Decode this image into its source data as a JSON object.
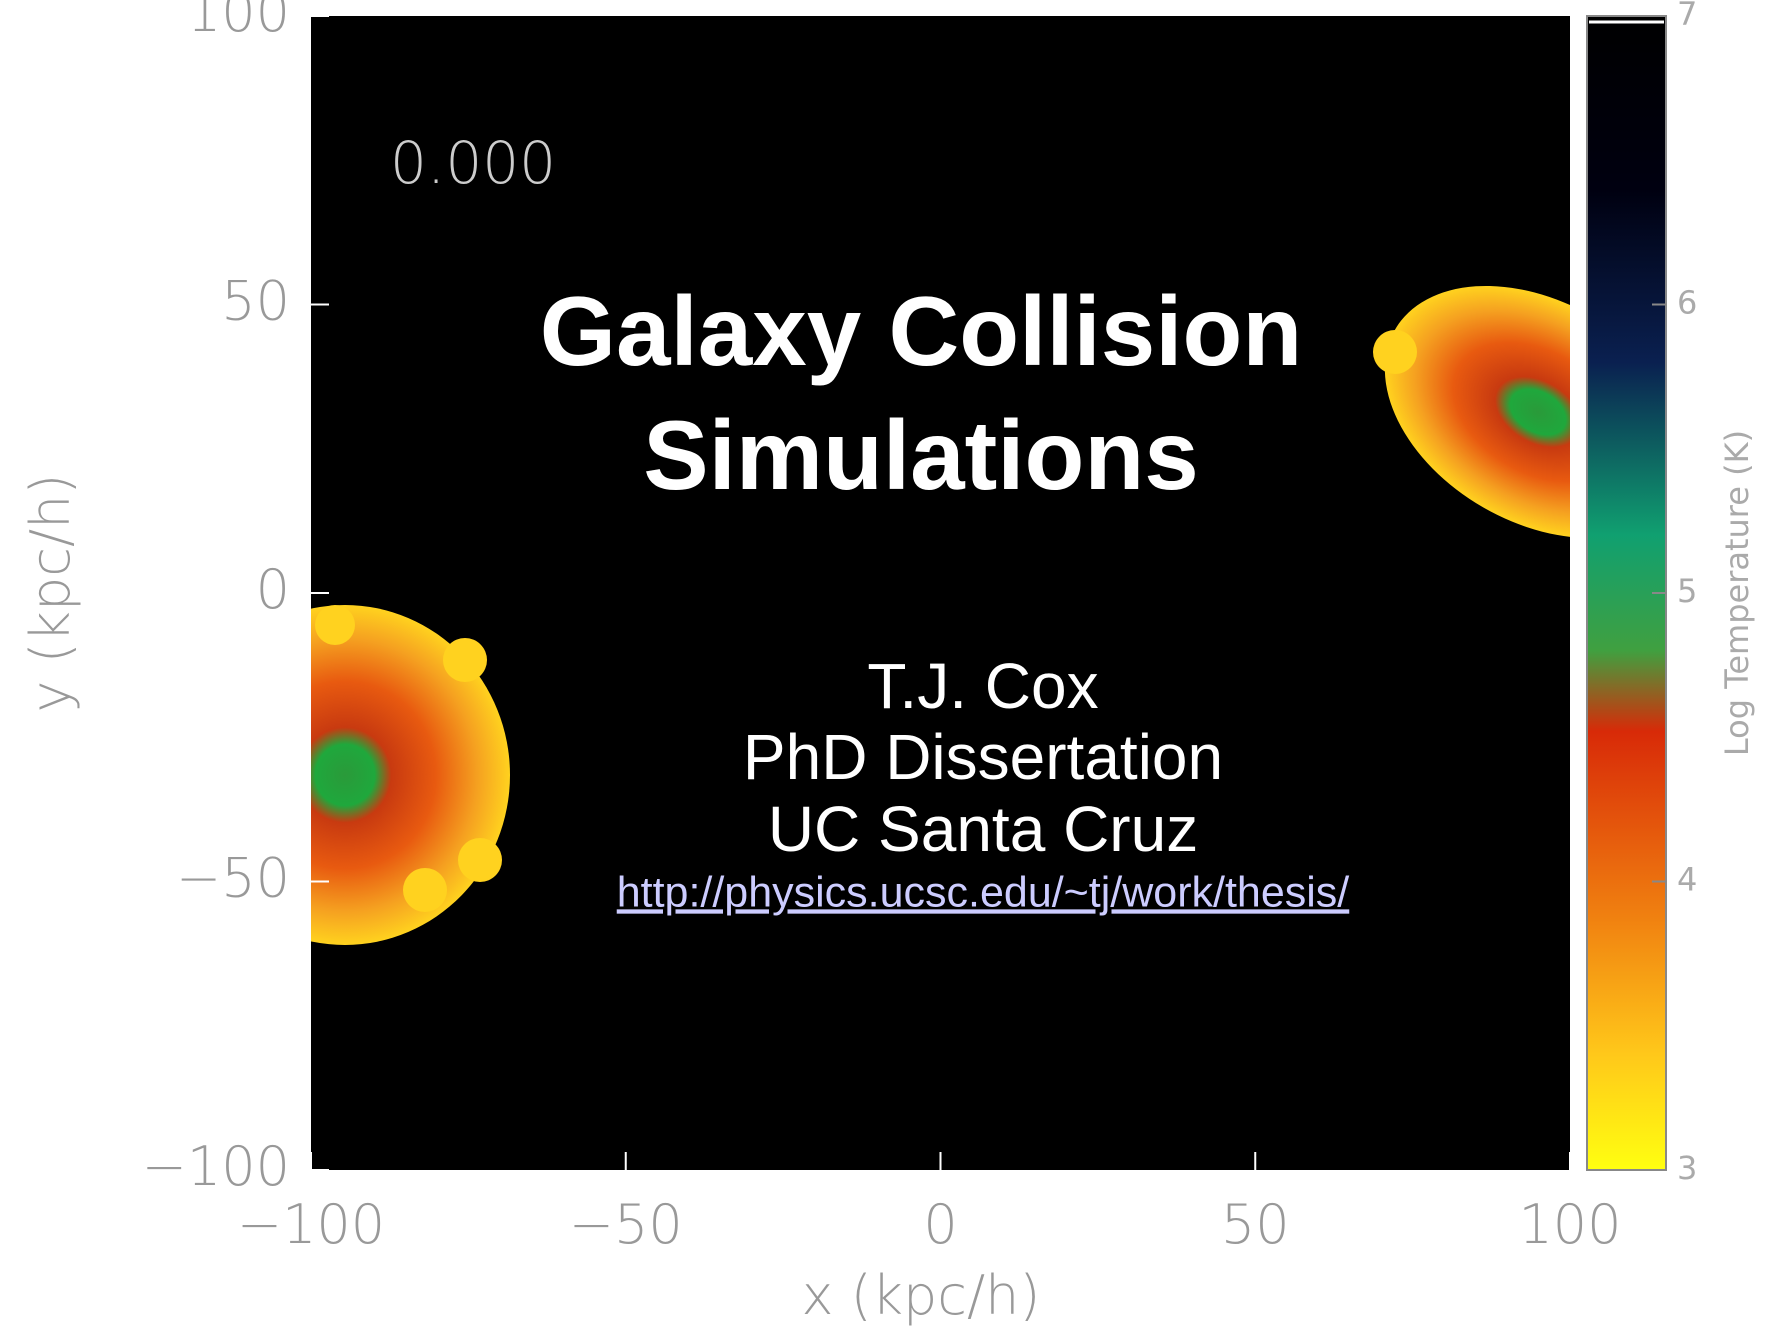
{
  "plot": {
    "time_label": "0.000",
    "xlabel": "x (kpc/h)",
    "ylabel": "y (kpc/h)",
    "xlim": [
      -100,
      100
    ],
    "ylim": [
      -100,
      100
    ],
    "xticks": [
      {
        "value": -100,
        "label": "−100"
      },
      {
        "value": -50,
        "label": "−50"
      },
      0,
      50,
      100
    ],
    "yticks": [
      {
        "value": -100,
        "label": "−100"
      },
      {
        "value": -50,
        "label": "−50"
      },
      0,
      50,
      100
    ],
    "colorbar": {
      "label": "Log Temperature (K)",
      "lim": [
        3,
        7
      ],
      "ticks": [
        3,
        4,
        5,
        6,
        7
      ]
    }
  },
  "slide": {
    "title": [
      "Galaxy Collision",
      "Simulations"
    ],
    "author": "T.J. Cox",
    "subtitle": [
      "PhD Dissertation",
      "UC Santa Cruz"
    ],
    "link": "http://physics.ucsc.edu/~tj/work/thesis/"
  }
}
